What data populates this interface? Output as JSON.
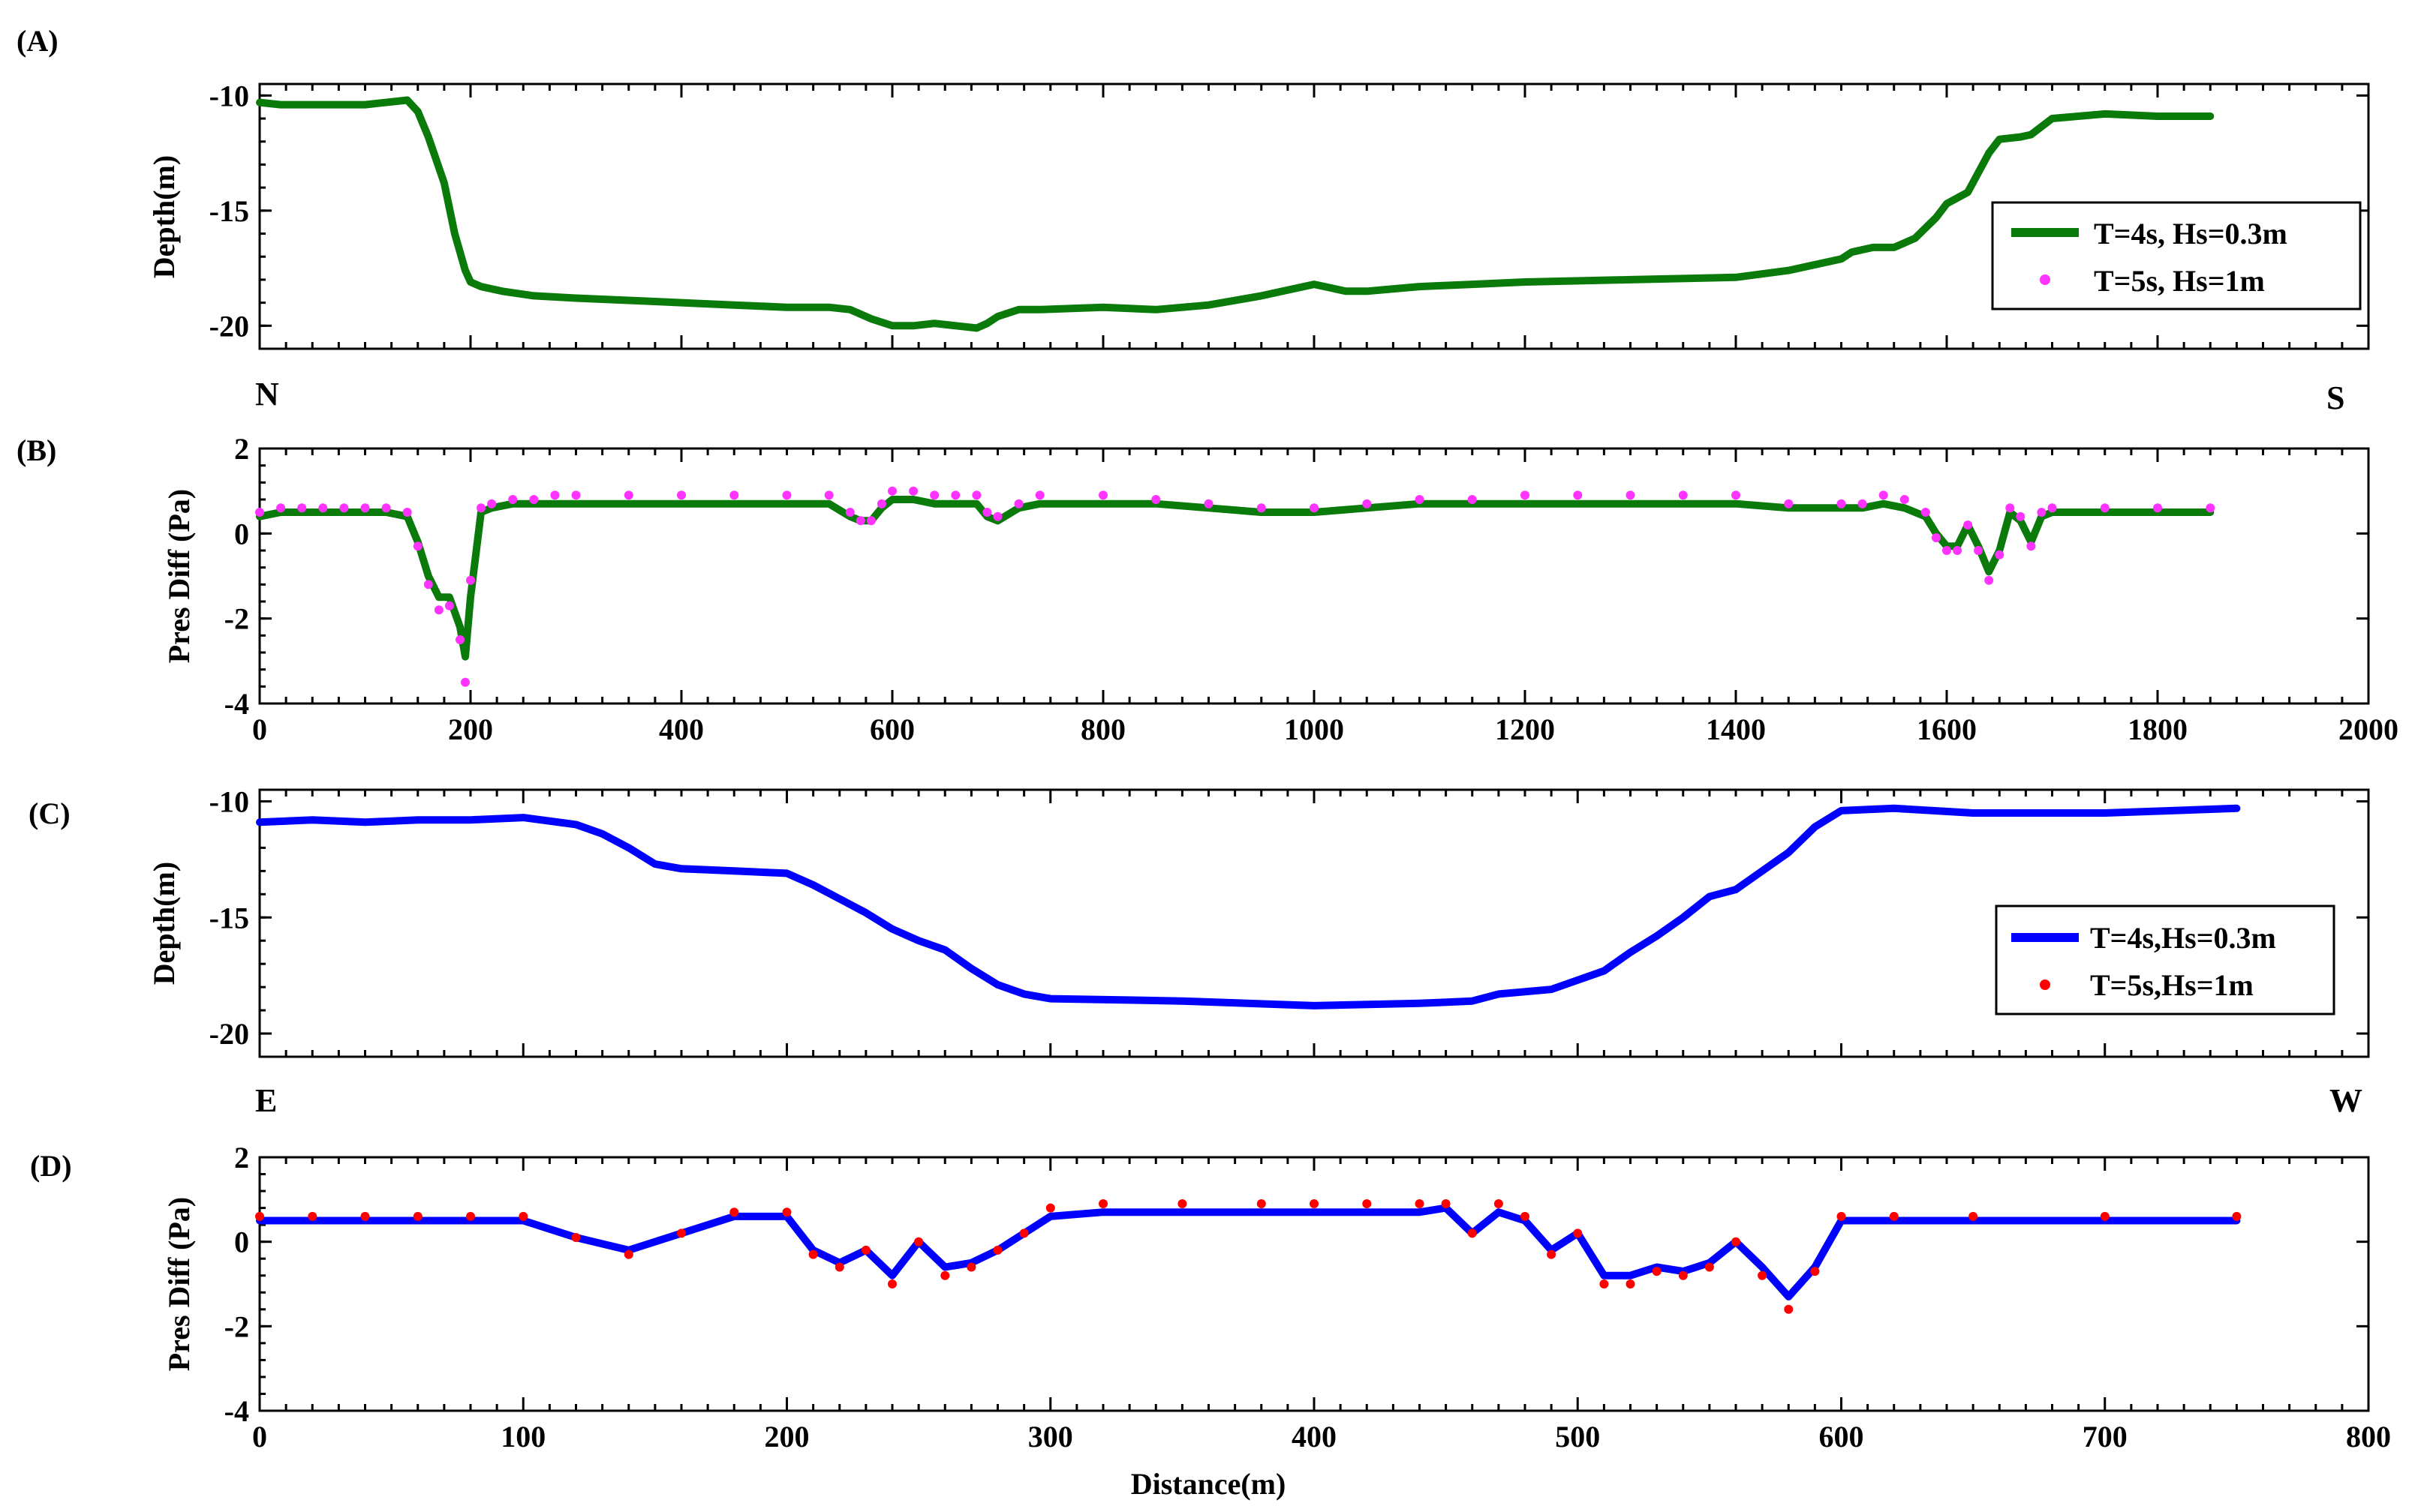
{
  "chart_data": [
    {
      "panel": "(A)",
      "type": "line",
      "xlabel": "",
      "ylabel": "Depth(m)",
      "xlim": [
        0,
        2000
      ],
      "ylim": [
        -21,
        -9.5
      ],
      "yticks": [
        -10,
        -15,
        -20
      ],
      "xticks": [],
      "left_label": "N",
      "right_label": "S",
      "legend_position": "right",
      "series": [
        {
          "name": "T=4s, Hs=0.3m",
          "style": "line",
          "color": "#0a7a0a",
          "x": [
            0,
            20,
            60,
            100,
            140,
            150,
            160,
            175,
            185,
            195,
            200,
            210,
            230,
            260,
            300,
            350,
            400,
            450,
            500,
            540,
            560,
            580,
            600,
            620,
            640,
            660,
            680,
            690,
            700,
            720,
            740,
            800,
            850,
            900,
            950,
            1000,
            1010,
            1030,
            1050,
            1100,
            1150,
            1200,
            1300,
            1400,
            1450,
            1500,
            1510,
            1530,
            1550,
            1570,
            1590,
            1600,
            1620,
            1640,
            1650,
            1670,
            1680,
            1700,
            1750,
            1800,
            1850
          ],
          "y": [
            -10.3,
            -10.4,
            -10.4,
            -10.4,
            -10.2,
            -10.7,
            -11.8,
            -13.8,
            -16,
            -17.6,
            -18.1,
            -18.3,
            -18.5,
            -18.7,
            -18.8,
            -18.9,
            -19.0,
            -19.1,
            -19.2,
            -19.2,
            -19.3,
            -19.7,
            -20.0,
            -20.0,
            -19.9,
            -20.0,
            -20.1,
            -19.9,
            -19.6,
            -19.3,
            -19.3,
            -19.2,
            -19.3,
            -19.1,
            -18.7,
            -18.2,
            -18.3,
            -18.5,
            -18.5,
            -18.3,
            -18.2,
            -18.1,
            -18.0,
            -17.9,
            -17.6,
            -17.1,
            -16.8,
            -16.6,
            -16.6,
            -16.2,
            -15.3,
            -14.7,
            -14.2,
            -12.5,
            -11.9,
            -11.8,
            -11.7,
            -11.0,
            -10.8,
            -10.9,
            -10.9
          ]
        },
        {
          "name": "T=5s, Hs=1m",
          "style": "markers",
          "color": "#ff33ff",
          "x": [],
          "y": []
        }
      ]
    },
    {
      "panel": "(B)",
      "type": "line",
      "xlabel": "",
      "ylabel": "Pres Diff (Pa)",
      "xlim": [
        0,
        2000
      ],
      "ylim": [
        -4,
        2
      ],
      "yticks": [
        2,
        0,
        -2,
        -4
      ],
      "xticks": [
        0,
        200,
        400,
        600,
        800,
        1000,
        1200,
        1400,
        1600,
        1800,
        2000
      ],
      "series": [
        {
          "name": "T=4s, Hs=0.3m",
          "style": "line",
          "color": "#0a7a0a",
          "x": [
            0,
            20,
            40,
            60,
            80,
            100,
            120,
            140,
            150,
            160,
            170,
            180,
            190,
            195,
            200,
            210,
            220,
            240,
            260,
            280,
            300,
            350,
            400,
            450,
            500,
            540,
            560,
            570,
            580,
            590,
            600,
            620,
            640,
            660,
            680,
            690,
            700,
            720,
            740,
            800,
            850,
            900,
            950,
            1000,
            1050,
            1100,
            1150,
            1200,
            1250,
            1300,
            1350,
            1400,
            1450,
            1500,
            1520,
            1540,
            1560,
            1580,
            1590,
            1600,
            1610,
            1620,
            1630,
            1640,
            1650,
            1660,
            1670,
            1680,
            1690,
            1700,
            1750,
            1800,
            1850
          ],
          "y": [
            0.4,
            0.5,
            0.5,
            0.5,
            0.5,
            0.5,
            0.5,
            0.4,
            -0.2,
            -1.0,
            -1.5,
            -1.5,
            -2.2,
            -2.9,
            -1.5,
            0.5,
            0.6,
            0.7,
            0.7,
            0.7,
            0.7,
            0.7,
            0.7,
            0.7,
            0.7,
            0.7,
            0.4,
            0.3,
            0.3,
            0.6,
            0.8,
            0.8,
            0.7,
            0.7,
            0.7,
            0.4,
            0.3,
            0.6,
            0.7,
            0.7,
            0.7,
            0.6,
            0.5,
            0.5,
            0.6,
            0.7,
            0.7,
            0.7,
            0.7,
            0.7,
            0.7,
            0.7,
            0.6,
            0.6,
            0.6,
            0.7,
            0.6,
            0.4,
            0.0,
            -0.3,
            -0.3,
            0.2,
            -0.3,
            -0.9,
            -0.4,
            0.5,
            0.3,
            -0.2,
            0.4,
            0.5,
            0.5,
            0.5,
            0.5
          ]
        },
        {
          "name": "T=5s, Hs=1m",
          "style": "markers",
          "color": "#ff33ff",
          "x": [
            0,
            20,
            40,
            60,
            80,
            100,
            120,
            140,
            150,
            160,
            170,
            180,
            190,
            195,
            200,
            210,
            220,
            240,
            260,
            280,
            300,
            350,
            400,
            450,
            500,
            540,
            560,
            570,
            580,
            590,
            600,
            620,
            640,
            660,
            680,
            690,
            700,
            720,
            740,
            800,
            850,
            900,
            950,
            1000,
            1050,
            1100,
            1150,
            1200,
            1250,
            1300,
            1350,
            1400,
            1450,
            1500,
            1520,
            1540,
            1560,
            1580,
            1590,
            1600,
            1610,
            1620,
            1630,
            1640,
            1650,
            1660,
            1670,
            1680,
            1690,
            1700,
            1750,
            1800,
            1850
          ],
          "y": [
            0.5,
            0.6,
            0.6,
            0.6,
            0.6,
            0.6,
            0.6,
            0.5,
            -0.3,
            -1.2,
            -1.8,
            -1.7,
            -2.5,
            -3.5,
            -1.1,
            0.6,
            0.7,
            0.8,
            0.8,
            0.9,
            0.9,
            0.9,
            0.9,
            0.9,
            0.9,
            0.9,
            0.5,
            0.3,
            0.3,
            0.7,
            1.0,
            1.0,
            0.9,
            0.9,
            0.9,
            0.5,
            0.4,
            0.7,
            0.9,
            0.9,
            0.8,
            0.7,
            0.6,
            0.6,
            0.7,
            0.8,
            0.8,
            0.9,
            0.9,
            0.9,
            0.9,
            0.9,
            0.7,
            0.7,
            0.7,
            0.9,
            0.8,
            0.5,
            -0.1,
            -0.4,
            -0.4,
            0.2,
            -0.4,
            -1.1,
            -0.5,
            0.6,
            0.4,
            -0.3,
            0.5,
            0.6,
            0.6,
            0.6,
            0.6
          ]
        }
      ]
    },
    {
      "panel": "(C)",
      "type": "line",
      "xlabel": "",
      "ylabel": "Depth(m)",
      "xlim": [
        0,
        800
      ],
      "ylim": [
        -21,
        -9.5
      ],
      "yticks": [
        -10,
        -15,
        -20
      ],
      "xticks": [],
      "left_label": "E",
      "right_label": "W",
      "legend_position": "right",
      "series": [
        {
          "name": "T=4s,Hs=0.3m",
          "style": "line",
          "color": "#0000ff",
          "x": [
            0,
            20,
            40,
            60,
            80,
            100,
            120,
            130,
            140,
            150,
            160,
            180,
            200,
            210,
            220,
            230,
            240,
            250,
            260,
            270,
            280,
            290,
            300,
            350,
            400,
            440,
            460,
            470,
            480,
            490,
            500,
            510,
            520,
            530,
            540,
            550,
            560,
            570,
            580,
            590,
            600,
            620,
            650,
            700,
            750
          ],
          "y": [
            -10.9,
            -10.8,
            -10.9,
            -10.8,
            -10.8,
            -10.7,
            -11.0,
            -11.4,
            -12.0,
            -12.7,
            -12.9,
            -13.0,
            -13.1,
            -13.6,
            -14.2,
            -14.8,
            -15.5,
            -16.0,
            -16.4,
            -17.2,
            -17.9,
            -18.3,
            -18.5,
            -18.6,
            -18.8,
            -18.7,
            -18.6,
            -18.3,
            -18.2,
            -18.1,
            -17.7,
            -17.3,
            -16.5,
            -15.8,
            -15.0,
            -14.1,
            -13.8,
            -13.0,
            -12.2,
            -11.1,
            -10.4,
            -10.3,
            -10.5,
            -10.5,
            -10.3
          ]
        },
        {
          "name": "T=5s,Hs=1m",
          "style": "markers",
          "color": "#ff0000",
          "x": [],
          "y": []
        }
      ]
    },
    {
      "panel": "(D)",
      "type": "line",
      "xlabel": "Distance(m)",
      "ylabel": "Pres Diff (Pa)",
      "xlim": [
        0,
        800
      ],
      "ylim": [
        -4,
        2
      ],
      "yticks": [
        2,
        0,
        -2,
        -4
      ],
      "xticks": [
        0,
        100,
        200,
        300,
        400,
        500,
        600,
        700,
        800
      ],
      "series": [
        {
          "name": "T=4s,Hs=0.3m",
          "style": "line",
          "color": "#0000ff",
          "x": [
            0,
            20,
            40,
            60,
            80,
            100,
            120,
            140,
            160,
            180,
            200,
            210,
            220,
            230,
            240,
            250,
            260,
            270,
            280,
            290,
            300,
            320,
            350,
            380,
            400,
            420,
            440,
            450,
            460,
            470,
            480,
            490,
            500,
            510,
            520,
            530,
            540,
            550,
            560,
            570,
            580,
            590,
            600,
            620,
            650,
            700,
            750
          ],
          "y": [
            0.5,
            0.5,
            0.5,
            0.5,
            0.5,
            0.5,
            0.1,
            -0.2,
            0.2,
            0.6,
            0.6,
            -0.2,
            -0.5,
            -0.2,
            -0.8,
            0.0,
            -0.6,
            -0.5,
            -0.2,
            0.2,
            0.6,
            0.7,
            0.7,
            0.7,
            0.7,
            0.7,
            0.7,
            0.8,
            0.2,
            0.7,
            0.5,
            -0.2,
            0.2,
            -0.8,
            -0.8,
            -0.6,
            -0.7,
            -0.5,
            0.0,
            -0.6,
            -1.3,
            -0.6,
            0.5,
            0.5,
            0.5,
            0.5,
            0.5
          ]
        },
        {
          "name": "T=5s,Hs=1m",
          "style": "markers",
          "color": "#ff0000",
          "x": [
            0,
            20,
            40,
            60,
            80,
            100,
            120,
            140,
            160,
            180,
            200,
            210,
            220,
            230,
            240,
            250,
            260,
            270,
            280,
            290,
            300,
            320,
            350,
            380,
            400,
            420,
            440,
            450,
            460,
            470,
            480,
            490,
            500,
            510,
            520,
            530,
            540,
            550,
            560,
            570,
            580,
            590,
            600,
            620,
            650,
            700,
            750
          ],
          "y": [
            0.6,
            0.6,
            0.6,
            0.6,
            0.6,
            0.6,
            0.1,
            -0.3,
            0.2,
            0.7,
            0.7,
            -0.3,
            -0.6,
            -0.2,
            -1.0,
            0.0,
            -0.8,
            -0.6,
            -0.2,
            0.2,
            0.8,
            0.9,
            0.9,
            0.9,
            0.9,
            0.9,
            0.9,
            0.9,
            0.2,
            0.9,
            0.6,
            -0.3,
            0.2,
            -1.0,
            -1.0,
            -0.7,
            -0.8,
            -0.6,
            0.0,
            -0.8,
            -1.6,
            -0.7,
            0.6,
            0.6,
            0.6,
            0.6,
            0.6
          ]
        }
      ]
    }
  ]
}
